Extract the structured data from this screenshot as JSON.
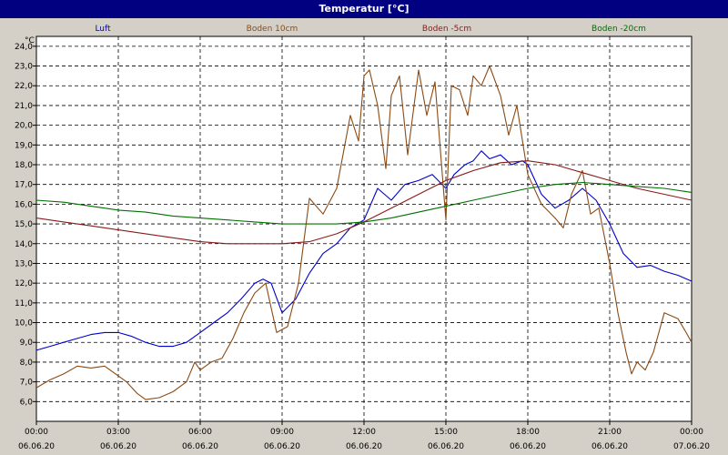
{
  "window": {
    "title": "Temperatur [°C]"
  },
  "chart_data": {
    "type": "line",
    "title": "Temperatur [°C]",
    "ylabel": "°C",
    "ylim": [
      5.0,
      24.5
    ],
    "xlim_hours": [
      0,
      24
    ],
    "grid": true,
    "legend_position": "top",
    "y_ticks": [
      "6,0",
      "7,0",
      "8,0",
      "9,0",
      "10,0",
      "11,0",
      "12,0",
      "13,0",
      "14,0",
      "15,0",
      "16,0",
      "17,0",
      "18,0",
      "19,0",
      "20,0",
      "21,0",
      "22,0",
      "23,0",
      "24,0"
    ],
    "x_ticks": [
      {
        "time": "00:00",
        "date": "06.06.20"
      },
      {
        "time": "03:00",
        "date": "06.06.20"
      },
      {
        "time": "06:00",
        "date": "06.06.20"
      },
      {
        "time": "09:00",
        "date": "06.06.20"
      },
      {
        "time": "12:00",
        "date": "06.06.20"
      },
      {
        "time": "15:00",
        "date": "06.06.20"
      },
      {
        "time": "18:00",
        "date": "06.06.20"
      },
      {
        "time": "21:00",
        "date": "06.06.20"
      },
      {
        "time": "00:00",
        "date": "07.06.20"
      }
    ],
    "series": [
      {
        "name": "Luft",
        "color": "#0000cc",
        "points": [
          [
            0,
            8.6
          ],
          [
            0.5,
            8.8
          ],
          [
            1,
            9.0
          ],
          [
            1.5,
            9.2
          ],
          [
            2,
            9.4
          ],
          [
            2.5,
            9.5
          ],
          [
            3,
            9.5
          ],
          [
            3.5,
            9.3
          ],
          [
            4,
            9.0
          ],
          [
            4.5,
            8.8
          ],
          [
            5,
            8.8
          ],
          [
            5.5,
            9.0
          ],
          [
            6,
            9.5
          ],
          [
            6.5,
            10.0
          ],
          [
            7,
            10.5
          ],
          [
            7.5,
            11.2
          ],
          [
            8,
            12.0
          ],
          [
            8.3,
            12.2
          ],
          [
            8.6,
            12.0
          ],
          [
            9,
            10.5
          ],
          [
            9.5,
            11.2
          ],
          [
            10,
            12.5
          ],
          [
            10.5,
            13.5
          ],
          [
            11,
            14.0
          ],
          [
            11.5,
            14.8
          ],
          [
            12,
            15.2
          ],
          [
            12.5,
            16.8
          ],
          [
            13,
            16.2
          ],
          [
            13.5,
            17.0
          ],
          [
            14,
            17.2
          ],
          [
            14.5,
            17.5
          ],
          [
            15,
            16.8
          ],
          [
            15.3,
            17.5
          ],
          [
            15.7,
            18.0
          ],
          [
            16,
            18.2
          ],
          [
            16.3,
            18.7
          ],
          [
            16.6,
            18.3
          ],
          [
            17,
            18.5
          ],
          [
            17.4,
            18.0
          ],
          [
            17.8,
            18.2
          ],
          [
            18,
            18.0
          ],
          [
            18.5,
            16.5
          ],
          [
            19,
            15.8
          ],
          [
            19.5,
            16.2
          ],
          [
            20,
            16.8
          ],
          [
            20.5,
            16.2
          ],
          [
            21,
            15.0
          ],
          [
            21.5,
            13.5
          ],
          [
            22,
            12.8
          ],
          [
            22.5,
            12.9
          ],
          [
            23,
            12.6
          ],
          [
            23.5,
            12.4
          ],
          [
            24,
            12.1
          ]
        ]
      },
      {
        "name": "Boden 10cm",
        "color": "#8b4a14",
        "points": [
          [
            0,
            6.7
          ],
          [
            0.5,
            7.1
          ],
          [
            1,
            7.4
          ],
          [
            1.5,
            7.8
          ],
          [
            2,
            7.7
          ],
          [
            2.5,
            7.8
          ],
          [
            3,
            7.3
          ],
          [
            3.3,
            7.0
          ],
          [
            3.7,
            6.4
          ],
          [
            4,
            6.1
          ],
          [
            4.5,
            6.2
          ],
          [
            5,
            6.5
          ],
          [
            5.5,
            7.0
          ],
          [
            5.8,
            8.0
          ],
          [
            6,
            7.6
          ],
          [
            6.4,
            8.0
          ],
          [
            6.8,
            8.2
          ],
          [
            7.2,
            9.2
          ],
          [
            7.6,
            10.5
          ],
          [
            8,
            11.5
          ],
          [
            8.4,
            12.0
          ],
          [
            8.8,
            9.5
          ],
          [
            9.2,
            9.8
          ],
          [
            9.6,
            12.0
          ],
          [
            10,
            16.3
          ],
          [
            10.5,
            15.5
          ],
          [
            11,
            16.8
          ],
          [
            11.5,
            20.5
          ],
          [
            11.8,
            19.2
          ],
          [
            12,
            22.5
          ],
          [
            12.2,
            22.8
          ],
          [
            12.5,
            21.0
          ],
          [
            12.8,
            17.8
          ],
          [
            13,
            21.5
          ],
          [
            13.3,
            22.5
          ],
          [
            13.6,
            18.5
          ],
          [
            14,
            22.8
          ],
          [
            14.3,
            20.5
          ],
          [
            14.6,
            22.2
          ],
          [
            15,
            15.2
          ],
          [
            15.2,
            22.0
          ],
          [
            15.5,
            21.8
          ],
          [
            15.8,
            20.5
          ],
          [
            16,
            22.5
          ],
          [
            16.3,
            22.0
          ],
          [
            16.6,
            23.0
          ],
          [
            17,
            21.5
          ],
          [
            17.3,
            19.5
          ],
          [
            17.6,
            21.0
          ],
          [
            18,
            17.5
          ],
          [
            18.5,
            16.0
          ],
          [
            19,
            15.3
          ],
          [
            19.3,
            14.8
          ],
          [
            19.6,
            16.5
          ],
          [
            20,
            17.7
          ],
          [
            20.3,
            15.5
          ],
          [
            20.6,
            15.8
          ],
          [
            21,
            13.0
          ],
          [
            21.3,
            10.5
          ],
          [
            21.6,
            8.5
          ],
          [
            21.8,
            7.4
          ],
          [
            22,
            8.0
          ],
          [
            22.3,
            7.6
          ],
          [
            22.6,
            8.5
          ],
          [
            23,
            10.5
          ],
          [
            23.5,
            10.2
          ],
          [
            23.8,
            9.5
          ],
          [
            24,
            9.0
          ]
        ]
      },
      {
        "name": "Boden -5cm",
        "color": "#8b1a1a",
        "points": [
          [
            0,
            15.3
          ],
          [
            1,
            15.1
          ],
          [
            2,
            14.9
          ],
          [
            3,
            14.7
          ],
          [
            4,
            14.5
          ],
          [
            5,
            14.3
          ],
          [
            6,
            14.1
          ],
          [
            7,
            14.0
          ],
          [
            8,
            14.0
          ],
          [
            9,
            14.0
          ],
          [
            10,
            14.1
          ],
          [
            11,
            14.5
          ],
          [
            12,
            15.1
          ],
          [
            13,
            15.8
          ],
          [
            14,
            16.5
          ],
          [
            15,
            17.2
          ],
          [
            16,
            17.7
          ],
          [
            17,
            18.1
          ],
          [
            18,
            18.2
          ],
          [
            19,
            18.0
          ],
          [
            20,
            17.6
          ],
          [
            21,
            17.2
          ],
          [
            22,
            16.8
          ],
          [
            23,
            16.5
          ],
          [
            24,
            16.2
          ]
        ]
      },
      {
        "name": "Boden -20cm",
        "color": "#007000",
        "points": [
          [
            0,
            16.2
          ],
          [
            1,
            16.1
          ],
          [
            2,
            15.9
          ],
          [
            3,
            15.7
          ],
          [
            4,
            15.6
          ],
          [
            5,
            15.4
          ],
          [
            6,
            15.3
          ],
          [
            7,
            15.2
          ],
          [
            8,
            15.1
          ],
          [
            9,
            15.0
          ],
          [
            10,
            15.0
          ],
          [
            11,
            15.0
          ],
          [
            12,
            15.1
          ],
          [
            13,
            15.3
          ],
          [
            14,
            15.6
          ],
          [
            15,
            15.9
          ],
          [
            16,
            16.2
          ],
          [
            17,
            16.5
          ],
          [
            18,
            16.8
          ],
          [
            19,
            17.0
          ],
          [
            20,
            17.1
          ],
          [
            21,
            17.0
          ],
          [
            22,
            16.9
          ],
          [
            23,
            16.8
          ],
          [
            24,
            16.6
          ]
        ]
      }
    ]
  }
}
